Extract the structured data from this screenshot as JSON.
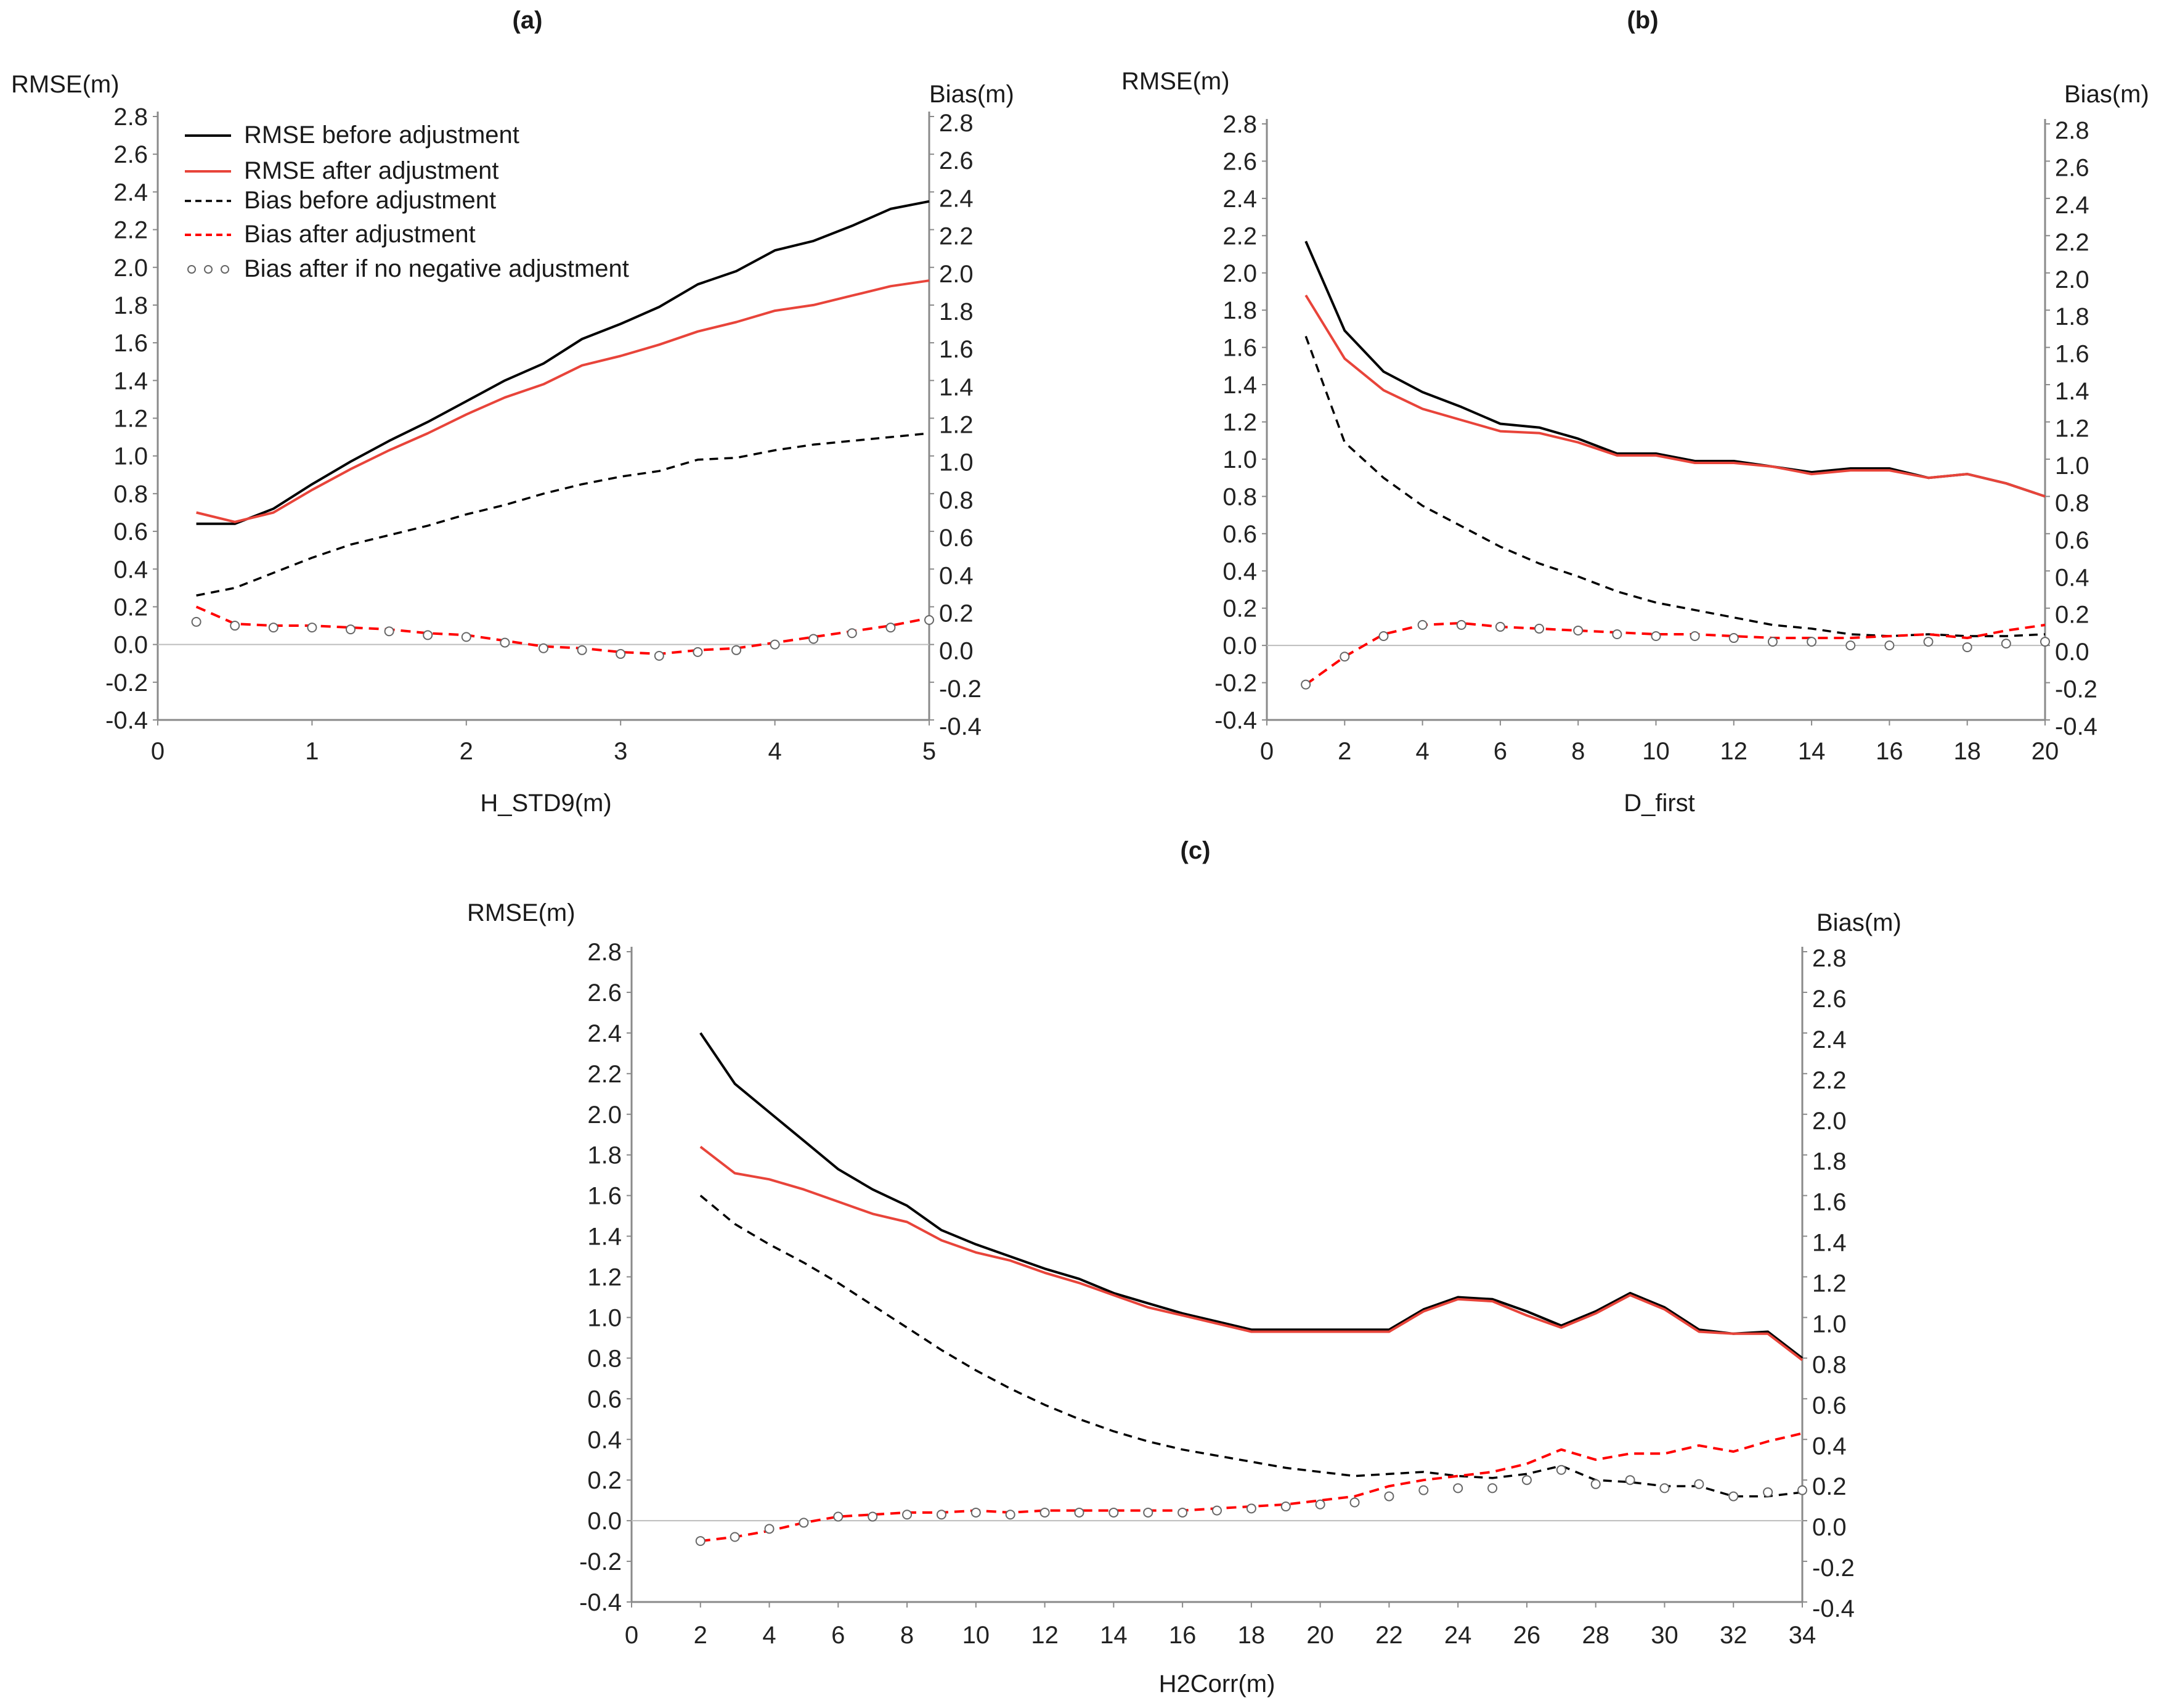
{
  "figure": {
    "description_labels": [
      "(a)",
      "(b)",
      "(c)"
    ]
  },
  "legend": {
    "items": [
      {
        "label": "RMSE before adjustment",
        "color": "#000000",
        "style": "solid"
      },
      {
        "label": "RMSE after adjustment",
        "color": "#e8443a",
        "style": "solid"
      },
      {
        "label": "Bias before adjustment",
        "color": "#000000",
        "style": "dashed"
      },
      {
        "label": "Bias after adjustment",
        "color": "#ff0000",
        "style": "dashed"
      },
      {
        "label": "Bias after if no negative adjustment",
        "color": "#777777",
        "style": "circles"
      }
    ]
  },
  "colors": {
    "rmse_before": "#000000",
    "rmse_after": "#e8443a",
    "bias_before": "#000000",
    "bias_after": "#ff0000",
    "bias_no_neg": "#666666",
    "axis": "#8a8a8a"
  },
  "chart_data": [
    {
      "id": "a",
      "type": "line",
      "title": "(a)",
      "xlabel": "H_STD9(m)",
      "ylabel": "RMSE(m)",
      "y2label": "Bias(m)",
      "xlim": [
        0,
        5
      ],
      "xticks": [
        0,
        1,
        2,
        3,
        4,
        5
      ],
      "ylim": [
        -0.4,
        2.8
      ],
      "yticks": [
        "-0.4",
        "-0.2",
        "0.0",
        "0.2",
        "0.4",
        "0.6",
        "0.8",
        "1.0",
        "1.2",
        "1.4",
        "1.6",
        "1.8",
        "2.0",
        "2.2",
        "2.4",
        "2.6",
        "2.8"
      ],
      "legend_position": "top-left",
      "x": [
        0.25,
        0.5,
        0.75,
        1.0,
        1.25,
        1.5,
        1.75,
        2.0,
        2.25,
        2.5,
        2.75,
        3.0,
        3.25,
        3.5,
        3.75,
        4.0,
        4.25,
        4.5,
        4.75,
        5.0
      ],
      "series": [
        {
          "name": "RMSE before adjustment",
          "values": [
            0.64,
            0.64,
            0.72,
            0.85,
            0.97,
            1.08,
            1.18,
            1.29,
            1.4,
            1.49,
            1.62,
            1.7,
            1.79,
            1.91,
            1.98,
            2.09,
            2.14,
            2.22,
            2.31,
            2.35
          ]
        },
        {
          "name": "RMSE after adjustment",
          "values": [
            0.7,
            0.65,
            0.7,
            0.82,
            0.93,
            1.03,
            1.12,
            1.22,
            1.31,
            1.38,
            1.48,
            1.53,
            1.59,
            1.66,
            1.71,
            1.77,
            1.8,
            1.85,
            1.9,
            1.93
          ]
        },
        {
          "name": "Bias before adjustment",
          "values": [
            0.26,
            0.3,
            0.38,
            0.46,
            0.53,
            0.58,
            0.63,
            0.69,
            0.74,
            0.8,
            0.85,
            0.89,
            0.92,
            0.98,
            0.99,
            1.03,
            1.06,
            1.08,
            1.1,
            1.12
          ]
        },
        {
          "name": "Bias after adjustment",
          "values": [
            0.2,
            0.11,
            0.1,
            0.1,
            0.09,
            0.08,
            0.06,
            0.05,
            0.02,
            -0.01,
            -0.02,
            -0.04,
            -0.05,
            -0.03,
            -0.02,
            0.01,
            0.04,
            0.07,
            0.1,
            0.14
          ]
        },
        {
          "name": "Bias after if no negative adjustment",
          "values": [
            0.12,
            0.1,
            0.09,
            0.09,
            0.08,
            0.07,
            0.05,
            0.04,
            0.01,
            -0.02,
            -0.03,
            -0.05,
            -0.06,
            -0.04,
            -0.03,
            0.0,
            0.03,
            0.06,
            0.09,
            0.13
          ]
        }
      ]
    },
    {
      "id": "b",
      "type": "line",
      "title": "(b)",
      "xlabel": "D_first",
      "ylabel": "RMSE(m)",
      "y2label": "Bias(m)",
      "xlim": [
        0,
        20
      ],
      "xticks": [
        0,
        2,
        4,
        6,
        8,
        10,
        12,
        14,
        16,
        18,
        20
      ],
      "ylim": [
        -0.4,
        2.8
      ],
      "yticks": [
        "-0.4",
        "-0.2",
        "0.0",
        "0.2",
        "0.4",
        "0.6",
        "0.8",
        "1.0",
        "1.2",
        "1.4",
        "1.6",
        "1.8",
        "2.0",
        "2.2",
        "2.4",
        "2.6",
        "2.8"
      ],
      "x": [
        1,
        2,
        3,
        4,
        5,
        6,
        7,
        8,
        9,
        10,
        11,
        12,
        13,
        14,
        15,
        16,
        17,
        18,
        19,
        20
      ],
      "series": [
        {
          "name": "RMSE before adjustment",
          "values": [
            2.17,
            1.69,
            1.47,
            1.36,
            1.28,
            1.19,
            1.17,
            1.11,
            1.03,
            1.03,
            0.99,
            0.99,
            0.96,
            0.93,
            0.95,
            0.95,
            0.9,
            0.92,
            0.87,
            0.8
          ]
        },
        {
          "name": "RMSE after adjustment",
          "values": [
            1.88,
            1.54,
            1.37,
            1.27,
            1.21,
            1.15,
            1.14,
            1.09,
            1.02,
            1.02,
            0.98,
            0.98,
            0.96,
            0.92,
            0.94,
            0.94,
            0.9,
            0.92,
            0.87,
            0.8
          ]
        },
        {
          "name": "Bias before adjustment",
          "values": [
            1.66,
            1.09,
            0.9,
            0.75,
            0.64,
            0.53,
            0.44,
            0.37,
            0.29,
            0.23,
            0.19,
            0.15,
            0.11,
            0.09,
            0.06,
            0.05,
            0.06,
            0.05,
            0.05,
            0.06
          ]
        },
        {
          "name": "Bias after adjustment",
          "values": [
            -0.21,
            -0.06,
            0.06,
            0.11,
            0.12,
            0.1,
            0.09,
            0.08,
            0.07,
            0.06,
            0.06,
            0.05,
            0.04,
            0.04,
            0.04,
            0.05,
            0.06,
            0.04,
            0.08,
            0.11
          ]
        },
        {
          "name": "Bias after if no negative adjustment",
          "values": [
            -0.21,
            -0.06,
            0.05,
            0.11,
            0.11,
            0.1,
            0.09,
            0.08,
            0.06,
            0.05,
            0.05,
            0.04,
            0.02,
            0.02,
            0.0,
            0.0,
            0.02,
            -0.01,
            0.01,
            0.02
          ]
        }
      ]
    },
    {
      "id": "c",
      "type": "line",
      "title": "(c)",
      "xlabel": "H2Corr(m)",
      "ylabel": "RMSE(m)",
      "y2label": "Bias(m)",
      "xlim": [
        0,
        34
      ],
      "xticks": [
        0,
        2,
        4,
        6,
        8,
        10,
        12,
        14,
        16,
        18,
        20,
        22,
        24,
        26,
        28,
        30,
        32,
        34
      ],
      "ylim": [
        -0.4,
        2.8
      ],
      "yticks": [
        "-0.4",
        "-0.2",
        "0.0",
        "0.2",
        "0.4",
        "0.6",
        "0.8",
        "1.0",
        "1.2",
        "1.4",
        "1.6",
        "1.8",
        "2.0",
        "2.2",
        "2.4",
        "2.6",
        "2.8"
      ],
      "x": [
        2,
        3,
        4,
        5,
        6,
        7,
        8,
        9,
        10,
        11,
        12,
        13,
        14,
        15,
        16,
        17,
        18,
        19,
        20,
        21,
        22,
        23,
        24,
        25,
        26,
        27,
        28,
        29,
        30,
        31,
        32,
        33,
        34
      ],
      "series": [
        {
          "name": "RMSE before adjustment",
          "values": [
            2.4,
            2.15,
            2.01,
            1.87,
            1.73,
            1.63,
            1.55,
            1.43,
            1.36,
            1.3,
            1.24,
            1.19,
            1.12,
            1.07,
            1.02,
            0.98,
            0.94,
            0.94,
            0.94,
            0.94,
            0.94,
            1.04,
            1.1,
            1.09,
            1.03,
            0.96,
            1.03,
            1.12,
            1.05,
            0.94,
            0.92,
            0.93,
            0.8
          ]
        },
        {
          "name": "RMSE after adjustment",
          "values": [
            1.84,
            1.71,
            1.68,
            1.63,
            1.57,
            1.51,
            1.47,
            1.38,
            1.32,
            1.28,
            1.22,
            1.17,
            1.11,
            1.05,
            1.01,
            0.97,
            0.93,
            0.93,
            0.93,
            0.93,
            0.93,
            1.03,
            1.09,
            1.08,
            1.01,
            0.95,
            1.02,
            1.11,
            1.04,
            0.93,
            0.92,
            0.92,
            0.79
          ]
        },
        {
          "name": "Bias before adjustment",
          "values": [
            1.6,
            1.46,
            1.36,
            1.27,
            1.17,
            1.06,
            0.95,
            0.84,
            0.74,
            0.65,
            0.57,
            0.5,
            0.44,
            0.39,
            0.35,
            0.32,
            0.29,
            0.26,
            0.24,
            0.22,
            0.23,
            0.24,
            0.22,
            0.21,
            0.23,
            0.27,
            0.2,
            0.19,
            0.17,
            0.17,
            0.12,
            0.12,
            0.14
          ]
        },
        {
          "name": "Bias after adjustment",
          "values": [
            -0.1,
            -0.08,
            -0.05,
            -0.01,
            0.02,
            0.03,
            0.04,
            0.04,
            0.05,
            0.04,
            0.05,
            0.05,
            0.05,
            0.05,
            0.05,
            0.06,
            0.07,
            0.08,
            0.1,
            0.12,
            0.17,
            0.2,
            0.22,
            0.24,
            0.28,
            0.35,
            0.3,
            0.33,
            0.33,
            0.37,
            0.34,
            0.39,
            0.43
          ]
        },
        {
          "name": "Bias after if no negative adjustment",
          "values": [
            -0.1,
            -0.08,
            -0.04,
            -0.01,
            0.02,
            0.02,
            0.03,
            0.03,
            0.04,
            0.03,
            0.04,
            0.04,
            0.04,
            0.04,
            0.04,
            0.05,
            0.06,
            0.07,
            0.08,
            0.09,
            0.12,
            0.15,
            0.16,
            0.16,
            0.2,
            0.25,
            0.18,
            0.2,
            0.16,
            0.18,
            0.12,
            0.14,
            0.15
          ]
        }
      ]
    }
  ]
}
